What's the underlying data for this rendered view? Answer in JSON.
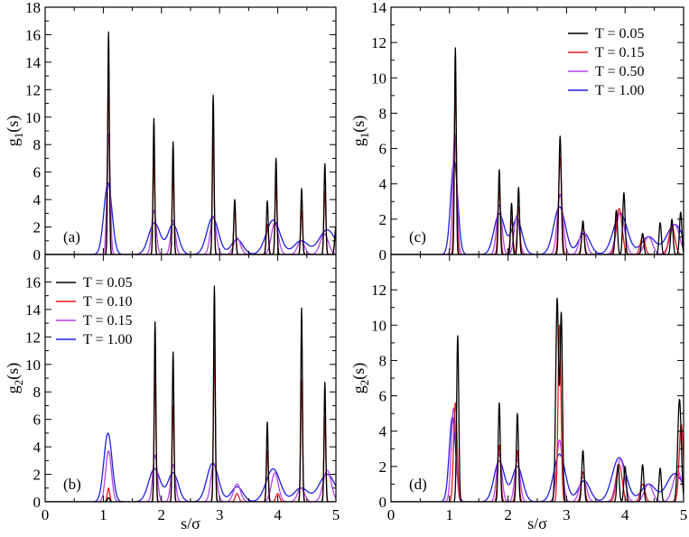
{
  "figure": {
    "xlabel": "s/σ"
  },
  "series_colors": [
    "#000000",
    "#e31a1c",
    "#b245f0",
    "#1f1fe0"
  ],
  "chart_data": [
    {
      "panel": "a",
      "label": "(a)",
      "type": "line",
      "ylabel": "g1(s)",
      "ylabel_main": "g",
      "ylabel_sub": "1",
      "ylabel_arg": "(s)",
      "xlim": [
        0,
        5
      ],
      "ylim": [
        0,
        18
      ],
      "xticks": [
        0,
        1,
        2,
        3,
        4,
        5
      ],
      "yticks": [
        0,
        2,
        4,
        6,
        8,
        10,
        12,
        14,
        16,
        18
      ],
      "legend": null,
      "series": [
        {
          "name": "T = 0.05",
          "peaks": [
            [
              1.09,
              16.2,
              0.014
            ],
            [
              1.87,
              9.9,
              0.014
            ],
            [
              2.2,
              8.2,
              0.014
            ],
            [
              2.89,
              11.6,
              0.014
            ],
            [
              3.26,
              4.0,
              0.016
            ],
            [
              3.82,
              3.9,
              0.016
            ],
            [
              3.97,
              7.0,
              0.015
            ],
            [
              4.41,
              4.8,
              0.015
            ],
            [
              4.81,
              6.6,
              0.015
            ],
            [
              5.0,
              2.0,
              0.02
            ]
          ]
        },
        {
          "name": "T = 0.10",
          "peaks": [
            [
              1.09,
              13.2,
              0.016
            ],
            [
              1.87,
              7.0,
              0.016
            ],
            [
              2.2,
              6.0,
              0.016
            ],
            [
              2.89,
              8.4,
              0.016
            ],
            [
              3.26,
              3.4,
              0.018
            ],
            [
              3.82,
              2.2,
              0.02
            ],
            [
              3.97,
              5.2,
              0.017
            ],
            [
              4.41,
              3.2,
              0.017
            ],
            [
              4.81,
              4.6,
              0.017
            ],
            [
              5.0,
              1.6,
              0.022
            ]
          ]
        },
        {
          "name": "T = 0.15",
          "peaks": [
            [
              1.09,
              8.8,
              0.028
            ],
            [
              1.87,
              3.2,
              0.04
            ],
            [
              2.2,
              2.5,
              0.04
            ],
            [
              2.89,
              2.8,
              0.05
            ],
            [
              3.3,
              1.2,
              0.06
            ],
            [
              3.95,
              2.3,
              0.06
            ],
            [
              4.4,
              1.0,
              0.06
            ],
            [
              4.8,
              1.5,
              0.07
            ]
          ]
        },
        {
          "name": "T = 1.00",
          "peaks": [
            [
              1.08,
              5.2,
              0.07
            ],
            [
              1.88,
              2.3,
              0.1
            ],
            [
              2.2,
              2.2,
              0.09
            ],
            [
              2.88,
              2.7,
              0.1
            ],
            [
              3.3,
              1.1,
              0.1
            ],
            [
              3.92,
              2.5,
              0.12
            ],
            [
              4.4,
              1.0,
              0.12
            ],
            [
              4.85,
              1.8,
              0.14
            ]
          ]
        }
      ]
    },
    {
      "panel": "b",
      "label": "(b)",
      "type": "line",
      "ylabel": "g2(s)",
      "ylabel_main": "g",
      "ylabel_sub": "2",
      "ylabel_arg": "(s)",
      "xlim": [
        0,
        5
      ],
      "ylim": [
        0,
        18
      ],
      "xticks": [
        0,
        1,
        2,
        3,
        4,
        5
      ],
      "yticks": [
        0,
        2,
        4,
        6,
        8,
        10,
        12,
        14,
        16
      ],
      "legend": {
        "location": "top-left",
        "entries": [
          "T = 0.05",
          "T = 0.10",
          "T = 0.15",
          "T = 1.00"
        ]
      },
      "series": [
        {
          "name": "T = 0.05",
          "peaks": [
            [
              1.09,
              0.3,
              0.02
            ],
            [
              1.89,
              13.1,
              0.014
            ],
            [
              2.2,
              10.9,
              0.014
            ],
            [
              2.91,
              15.7,
              0.014
            ],
            [
              3.82,
              5.8,
              0.014
            ],
            [
              4.41,
              14.1,
              0.014
            ],
            [
              4.81,
              8.7,
              0.014
            ]
          ]
        },
        {
          "name": "T = 0.10",
          "peaks": [
            [
              1.09,
              1.0,
              0.02
            ],
            [
              1.89,
              9.5,
              0.016
            ],
            [
              2.2,
              7.0,
              0.016
            ],
            [
              2.91,
              11.1,
              0.016
            ],
            [
              3.3,
              0.6,
              0.03
            ],
            [
              3.82,
              3.7,
              0.017
            ],
            [
              4.0,
              0.6,
              0.03
            ],
            [
              4.41,
              8.8,
              0.016
            ],
            [
              4.81,
              6.1,
              0.016
            ]
          ]
        },
        {
          "name": "T = 0.15",
          "peaks": [
            [
              1.09,
              3.7,
              0.05
            ],
            [
              1.89,
              3.4,
              0.04
            ],
            [
              2.2,
              2.7,
              0.04
            ],
            [
              2.9,
              2.8,
              0.05
            ],
            [
              3.3,
              1.3,
              0.06
            ],
            [
              3.95,
              2.1,
              0.06
            ],
            [
              4.4,
              1.0,
              0.06
            ],
            [
              4.85,
              2.3,
              0.07
            ]
          ]
        },
        {
          "name": "T = 1.00",
          "peaks": [
            [
              1.08,
              5.0,
              0.07
            ],
            [
              1.88,
              2.4,
              0.1
            ],
            [
              2.2,
              2.1,
              0.09
            ],
            [
              2.88,
              2.8,
              0.1
            ],
            [
              3.3,
              1.1,
              0.1
            ],
            [
              3.92,
              2.4,
              0.12
            ],
            [
              4.4,
              1.0,
              0.12
            ],
            [
              4.85,
              2.0,
              0.14
            ]
          ]
        }
      ]
    },
    {
      "panel": "c",
      "label": "(c)",
      "type": "line",
      "ylabel": "g1(s)",
      "ylabel_main": "g",
      "ylabel_sub": "1",
      "ylabel_arg": "(s)",
      "xlim": [
        0,
        5
      ],
      "ylim": [
        0,
        14
      ],
      "xticks": [
        0,
        1,
        2,
        3,
        4,
        5
      ],
      "yticks": [
        0,
        2,
        4,
        6,
        8,
        10,
        12,
        14
      ],
      "legend": {
        "location": "top-right",
        "entries": [
          "T = 0.05",
          "T = 0.15",
          "T = 0.50",
          "T = 1.00"
        ]
      },
      "series": [
        {
          "name": "T = 0.05",
          "peaks": [
            [
              1.1,
              11.7,
              0.015
            ],
            [
              1.85,
              4.8,
              0.016
            ],
            [
              2.06,
              2.9,
              0.016
            ],
            [
              2.18,
              3.8,
              0.016
            ],
            [
              2.89,
              6.7,
              0.02
            ],
            [
              3.28,
              1.9,
              0.02
            ],
            [
              3.85,
              2.5,
              0.02
            ],
            [
              3.98,
              3.5,
              0.02
            ],
            [
              4.3,
              1.2,
              0.02
            ],
            [
              4.6,
              1.8,
              0.02
            ],
            [
              4.8,
              2.0,
              0.02
            ],
            [
              4.95,
              2.4,
              0.02
            ]
          ]
        },
        {
          "name": "T = 0.15",
          "peaks": [
            [
              1.1,
              9.3,
              0.02
            ],
            [
              1.85,
              3.7,
              0.022
            ],
            [
              2.06,
              2.0,
              0.022
            ],
            [
              2.18,
              2.7,
              0.022
            ],
            [
              2.89,
              5.5,
              0.026
            ],
            [
              3.28,
              1.6,
              0.025
            ],
            [
              3.9,
              2.6,
              0.05
            ],
            [
              4.3,
              1.0,
              0.04
            ],
            [
              4.8,
              1.6,
              0.05
            ]
          ]
        },
        {
          "name": "T = 0.50",
          "peaks": [
            [
              1.09,
              6.8,
              0.035
            ],
            [
              1.85,
              2.8,
              0.045
            ],
            [
              2.15,
              2.2,
              0.045
            ],
            [
              2.89,
              3.4,
              0.05
            ],
            [
              3.28,
              1.4,
              0.06
            ],
            [
              3.92,
              2.4,
              0.07
            ],
            [
              4.4,
              1.0,
              0.07
            ],
            [
              4.85,
              1.7,
              0.08
            ]
          ]
        },
        {
          "name": "T = 1.00",
          "peaks": [
            [
              1.08,
              5.3,
              0.06
            ],
            [
              1.85,
              2.3,
              0.09
            ],
            [
              2.15,
              2.0,
              0.09
            ],
            [
              2.88,
              2.7,
              0.1
            ],
            [
              3.3,
              1.2,
              0.1
            ],
            [
              3.92,
              2.3,
              0.12
            ],
            [
              4.4,
              1.0,
              0.12
            ],
            [
              4.85,
              1.7,
              0.14
            ]
          ]
        }
      ]
    },
    {
      "panel": "d",
      "label": "(d)",
      "type": "line",
      "ylabel": "g2(s)",
      "ylabel_main": "g",
      "ylabel_sub": "2",
      "ylabel_arg": "(s)",
      "xlim": [
        0,
        5
      ],
      "ylim": [
        0,
        14
      ],
      "xticks": [
        0,
        1,
        2,
        3,
        4,
        5
      ],
      "yticks": [
        0,
        2,
        4,
        6,
        8,
        10,
        12
      ],
      "legend": null,
      "series": [
        {
          "name": "T = 0.05",
          "peaks": [
            [
              1.14,
              9.4,
              0.018
            ],
            [
              1.85,
              5.6,
              0.018
            ],
            [
              2.16,
              5.0,
              0.018
            ],
            [
              2.84,
              11.5,
              0.025
            ],
            [
              2.91,
              10.5,
              0.02
            ],
            [
              3.28,
              2.9,
              0.02
            ],
            [
              3.88,
              2.1,
              0.02
            ],
            [
              4.0,
              2.0,
              0.02
            ],
            [
              4.3,
              2.1,
              0.02
            ],
            [
              4.6,
              1.9,
              0.02
            ],
            [
              4.93,
              5.8,
              0.03
            ]
          ]
        },
        {
          "name": "T = 0.15",
          "peaks": [
            [
              1.1,
              5.6,
              0.03
            ],
            [
              1.85,
              3.2,
              0.025
            ],
            [
              2.16,
              2.9,
              0.025
            ],
            [
              2.88,
              10.0,
              0.025
            ],
            [
              3.28,
              1.7,
              0.03
            ],
            [
              3.9,
              2.1,
              0.05
            ],
            [
              4.3,
              1.0,
              0.04
            ],
            [
              4.96,
              4.4,
              0.035
            ]
          ]
        },
        {
          "name": "T = 0.50",
          "peaks": [
            [
              1.07,
              5.3,
              0.04
            ],
            [
              1.85,
              2.7,
              0.045
            ],
            [
              2.16,
              2.4,
              0.045
            ],
            [
              2.88,
              3.5,
              0.05
            ],
            [
              3.28,
              1.4,
              0.06
            ],
            [
              3.92,
              2.4,
              0.07
            ],
            [
              4.4,
              1.0,
              0.07
            ],
            [
              4.9,
              1.7,
              0.08
            ]
          ]
        },
        {
          "name": "T = 1.00",
          "peaks": [
            [
              1.05,
              4.8,
              0.055
            ],
            [
              1.85,
              2.3,
              0.09
            ],
            [
              2.16,
              2.0,
              0.09
            ],
            [
              2.88,
              2.7,
              0.1
            ],
            [
              3.3,
              1.2,
              0.1
            ],
            [
              3.9,
              2.5,
              0.12
            ],
            [
              4.4,
              1.0,
              0.12
            ],
            [
              4.85,
              1.6,
              0.14
            ]
          ]
        }
      ]
    }
  ]
}
